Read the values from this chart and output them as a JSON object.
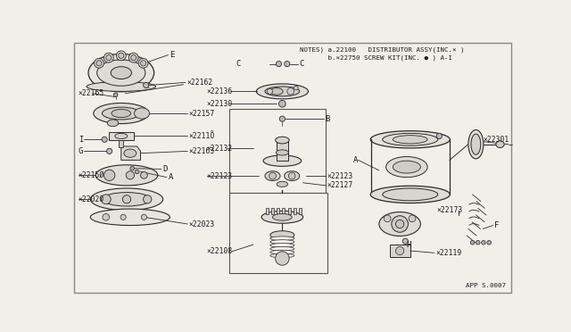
{
  "bg_color": "#f2efe9",
  "line_color": "#2a2a2a",
  "text_color": "#1a1a1a",
  "notes_line1": "NOTES) a.22100   DISTRIBUTOR ASSY(INC.× )",
  "notes_line2": "       b.×22750 SCREW KIT(INC. ● ) A-I",
  "app_code": "APP S.0007",
  "fs_label": 5.8,
  "fs_note": 5.4,
  "fs_letter": 6.5
}
